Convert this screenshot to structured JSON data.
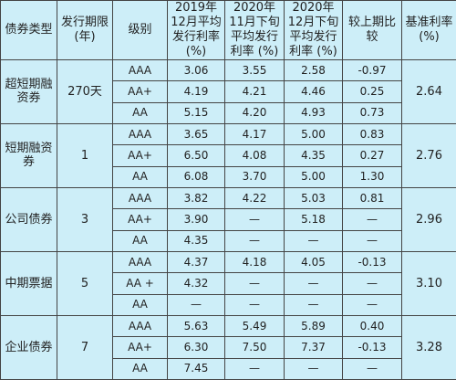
{
  "table": {
    "header": [
      "债券类型",
      "发行期限(年)",
      "级别",
      "2019年12月平均发行利率(%)",
      "2020年11月下旬平均发行利率 (%)",
      "2020年12月下旬平均发行利率 (%)",
      "较上期比较",
      "基准利率(%)"
    ],
    "groups": [
      {
        "type": "超短期融资券",
        "term": "270天",
        "base": "2.64",
        "rows": [
          [
            "AAA",
            "3.06",
            "3.55",
            "2.58",
            "-0.97"
          ],
          [
            "AA+",
            "4.19",
            "4.21",
            "4.46",
            "0.25"
          ],
          [
            "AA",
            "5.15",
            "4.20",
            "4.93",
            "0.73"
          ]
        ]
      },
      {
        "type": "短期融资券",
        "term": "1",
        "base": "2.76",
        "rows": [
          [
            "AAA",
            "3.65",
            "4.17",
            "5.00",
            "0.83"
          ],
          [
            "AA+",
            "6.50",
            "4.08",
            "4.35",
            "0.27"
          ],
          [
            "AA",
            "6.08",
            "3.70",
            "5.00",
            "1.30"
          ]
        ]
      },
      {
        "type": "公司债券",
        "term": "3",
        "base": "2.96",
        "rows": [
          [
            "AAA",
            "3.82",
            "4.22",
            "5.03",
            "0.81"
          ],
          [
            "AA+",
            "3.90",
            "—",
            "5.18",
            "—"
          ],
          [
            "AA",
            "4.35",
            "—",
            "—",
            "—"
          ]
        ]
      },
      {
        "type": "中期票据",
        "term": "5",
        "base": "3.10",
        "rows": [
          [
            "AAA",
            "4.37",
            "4.18",
            "4.05",
            "-0.13"
          ],
          [
            "AA +",
            "4.32",
            "—",
            "—",
            "—"
          ],
          [
            "AA",
            "—",
            "—",
            "—",
            "—"
          ]
        ]
      },
      {
        "type": "企业债券",
        "term": "7",
        "base": "3.28",
        "rows": [
          [
            "AAA",
            "5.63",
            "5.49",
            "5.89",
            "0.40"
          ],
          [
            "AA+",
            "6.30",
            "7.50",
            "7.37",
            "-0.13"
          ],
          [
            "AA",
            "7.45",
            "—",
            "—",
            "—"
          ]
        ]
      }
    ]
  }
}
